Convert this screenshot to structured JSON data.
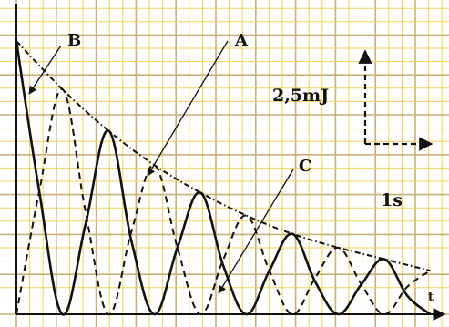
{
  "chart_data": {
    "type": "line",
    "title": "",
    "xlabel": "t",
    "ylabel": "",
    "grid": true,
    "scale": {
      "vertical_label": "2,5mJ",
      "horizontal_label": "1s"
    },
    "curve_labels": [
      "A",
      "B",
      "C"
    ],
    "series": [
      {
        "name": "A",
        "style": "dash-dot",
        "x": [
          0,
          1,
          2,
          3,
          4,
          5,
          6,
          7,
          8,
          9
        ],
        "values": [
          11.9,
          9.8,
          8.0,
          6.5,
          5.3,
          4.3,
          3.5,
          2.9,
          2.4,
          1.9
        ]
      },
      {
        "name": "B",
        "style": "solid",
        "x": [
          0,
          0.5,
          1,
          1.5,
          2,
          2.5,
          3,
          3.5,
          4,
          4.5,
          5,
          5.5,
          6,
          6.5,
          7,
          7.5,
          8,
          8.5,
          9
        ],
        "values": [
          11.9,
          5.3,
          0,
          3.9,
          8.0,
          3.2,
          0,
          2.9,
          5.3,
          2.1,
          0,
          1.9,
          3.5,
          1.4,
          0,
          1.3,
          2.4,
          0.8,
          0
        ]
      },
      {
        "name": "C",
        "style": "dashed",
        "x": [
          0,
          0.5,
          1,
          1.5,
          2,
          2.5,
          3,
          3.5,
          4,
          4.5,
          5,
          5.5,
          6,
          6.5,
          7,
          7.5,
          8,
          8.5,
          9
        ],
        "values": [
          0,
          5.4,
          9.8,
          4.5,
          0,
          3.6,
          6.5,
          2.9,
          0,
          2.4,
          4.3,
          1.9,
          0,
          1.6,
          2.9,
          1.3,
          0,
          1.2,
          1.9
        ]
      }
    ]
  },
  "colors": {
    "grid_fine": "#f3d25a",
    "grid_major": "#c9b07a",
    "ink": "#111111"
  }
}
